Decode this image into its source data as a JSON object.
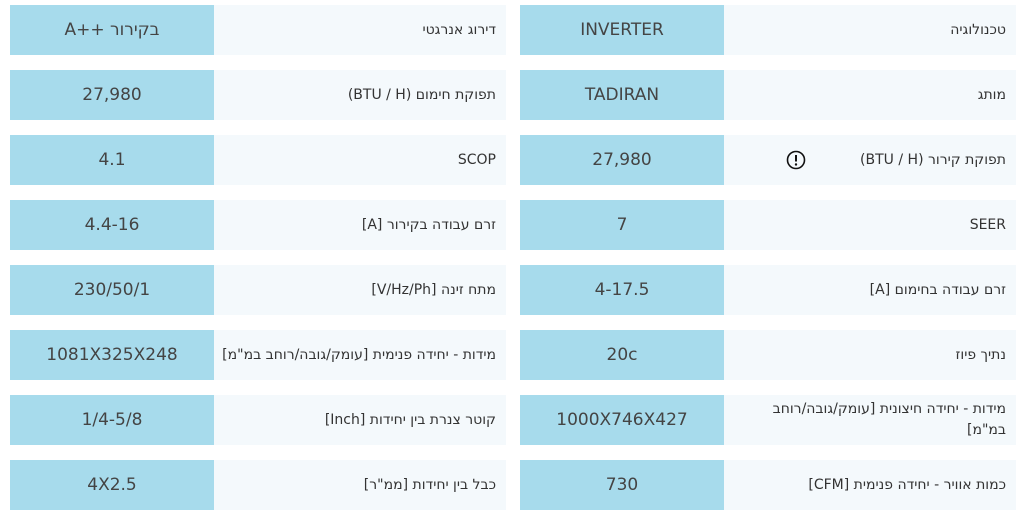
{
  "tables": [
    {
      "rows": [
        {
          "label": "טכנולוגיה",
          "value": "INVERTER"
        },
        {
          "label": "מותג",
          "value": "TADIRAN"
        },
        {
          "label": "תפוקת קירור (BTU / H)",
          "value": "27,980"
        },
        {
          "label": "SEER",
          "value": "7"
        },
        {
          "label": "זרם עבודה בחימום [A]",
          "value": "4-17.5"
        },
        {
          "label": "נתיך פיוז",
          "value": "20c"
        },
        {
          "label": "מידות - יחידה חיצונית [עומק/גובה/רוחב במ\"מ]",
          "value": "1000X746X427"
        },
        {
          "label": "כמות אוויר - יחידה פנימית [CFM]",
          "value": "730"
        }
      ]
    },
    {
      "rows": [
        {
          "label": "דירוג אנרגטי",
          "value": "A++ בקירור"
        },
        {
          "label": "תפוקת חימום (BTU / H)",
          "value": "27,980"
        },
        {
          "label": "SCOP",
          "value": "4.1"
        },
        {
          "label": "זרם עבודה בקירור [A]",
          "value": "4.4-16"
        },
        {
          "label": "מתח זינה [V/Hz/Ph]",
          "value": "230/50/1"
        },
        {
          "label": "מידות - יחידה פנימית [עומק/גובה/רוחב במ\"מ]",
          "value": "1081X325X248"
        },
        {
          "label": "קוטר צנרת בין יחידות [Inch]",
          "value": "1/4-5/8"
        },
        {
          "label": "כבל בין יחידות [ממ\"ר]",
          "value": "4X2.5"
        }
      ]
    }
  ]
}
